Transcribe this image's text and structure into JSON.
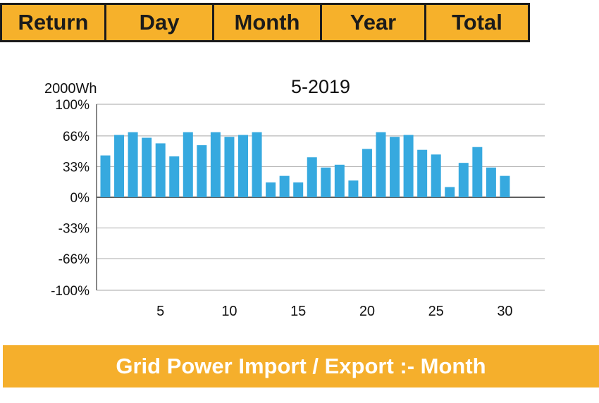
{
  "tabs": [
    {
      "label": "Return"
    },
    {
      "label": "Day"
    },
    {
      "label": "Month"
    },
    {
      "label": "Year"
    },
    {
      "label": "Total"
    }
  ],
  "footer": {
    "title": "Grid Power Import / Export :- Month"
  },
  "colors": {
    "accent": "#f6b12b",
    "bar": "#36a9df",
    "border": "#1b1b1b"
  },
  "chart_data": {
    "type": "bar",
    "title": "5-2019",
    "scale_label": "2000Wh",
    "ylim": [
      -100,
      100
    ],
    "y_ticks": [
      "100%",
      "66%",
      "33%",
      "0%",
      "-33%",
      "-66%",
      "-100%"
    ],
    "y_tick_values": [
      100,
      66,
      33,
      0,
      -33,
      -66,
      -100
    ],
    "x_tick_labels": [
      "5",
      "10",
      "15",
      "20",
      "25",
      "30"
    ],
    "x_tick_values": [
      5,
      10,
      15,
      20,
      25,
      30
    ],
    "grid": true,
    "categories": [
      1,
      2,
      3,
      4,
      5,
      6,
      7,
      8,
      9,
      10,
      11,
      12,
      13,
      14,
      15,
      16,
      17,
      18,
      19,
      20,
      21,
      22,
      23,
      24,
      25,
      26,
      27,
      28,
      29,
      30,
      31
    ],
    "values": [
      45,
      67,
      70,
      64,
      58,
      44,
      70,
      56,
      70,
      65,
      67,
      70,
      16,
      23,
      16,
      43,
      32,
      35,
      18,
      52,
      70,
      65,
      67,
      51,
      46,
      11,
      37,
      54,
      32,
      23,
      0
    ]
  }
}
